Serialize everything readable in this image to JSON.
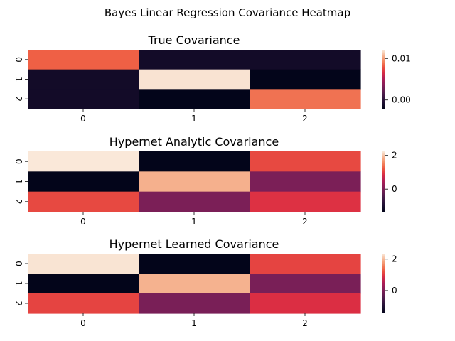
{
  "figure": {
    "title": "Bayes Linear Regression Covariance Heatmap"
  },
  "chart_data": [
    {
      "type": "heatmap",
      "title": "True Covariance",
      "x_ticks": [
        "0",
        "1",
        "2"
      ],
      "y_ticks": [
        "0",
        "1",
        "2"
      ],
      "values": [
        [
          0.0083,
          -0.0012,
          -0.0012
        ],
        [
          -0.0012,
          0.0119,
          -0.0021
        ],
        [
          -0.0012,
          -0.0021,
          0.0088
        ]
      ],
      "colorbar": {
        "vmin": -0.0021,
        "vmax": 0.0121,
        "ticks": [
          0.0,
          0.01
        ],
        "tick_labels": [
          "0.00",
          "0.01"
        ]
      },
      "colormap": "rocket"
    },
    {
      "type": "heatmap",
      "title": "Hypernet Analytic Covariance",
      "x_ticks": [
        "0",
        "1",
        "2"
      ],
      "y_ticks": [
        "0",
        "1",
        "2"
      ],
      "values": [
        [
          2.22,
          -1.34,
          1.1
        ],
        [
          -1.34,
          1.85,
          0.0
        ],
        [
          1.1,
          0.0,
          0.9
        ]
      ],
      "colorbar": {
        "vmin": -1.34,
        "vmax": 2.24,
        "ticks": [
          0,
          2
        ],
        "tick_labels": [
          "0",
          "2"
        ]
      },
      "colormap": "rocket"
    },
    {
      "type": "heatmap",
      "title": "Hypernet Learned Covariance",
      "x_ticks": [
        "0",
        "1",
        "2"
      ],
      "y_ticks": [
        "0",
        "1",
        "2"
      ],
      "values": [
        [
          2.3,
          -1.45,
          1.1
        ],
        [
          -1.45,
          1.95,
          -0.05
        ],
        [
          1.1,
          -0.05,
          0.9
        ]
      ],
      "colorbar": {
        "vmin": -1.45,
        "vmax": 2.35,
        "ticks": [
          0,
          2
        ],
        "tick_labels": [
          "0",
          "2"
        ]
      },
      "colormap": "rocket"
    }
  ]
}
